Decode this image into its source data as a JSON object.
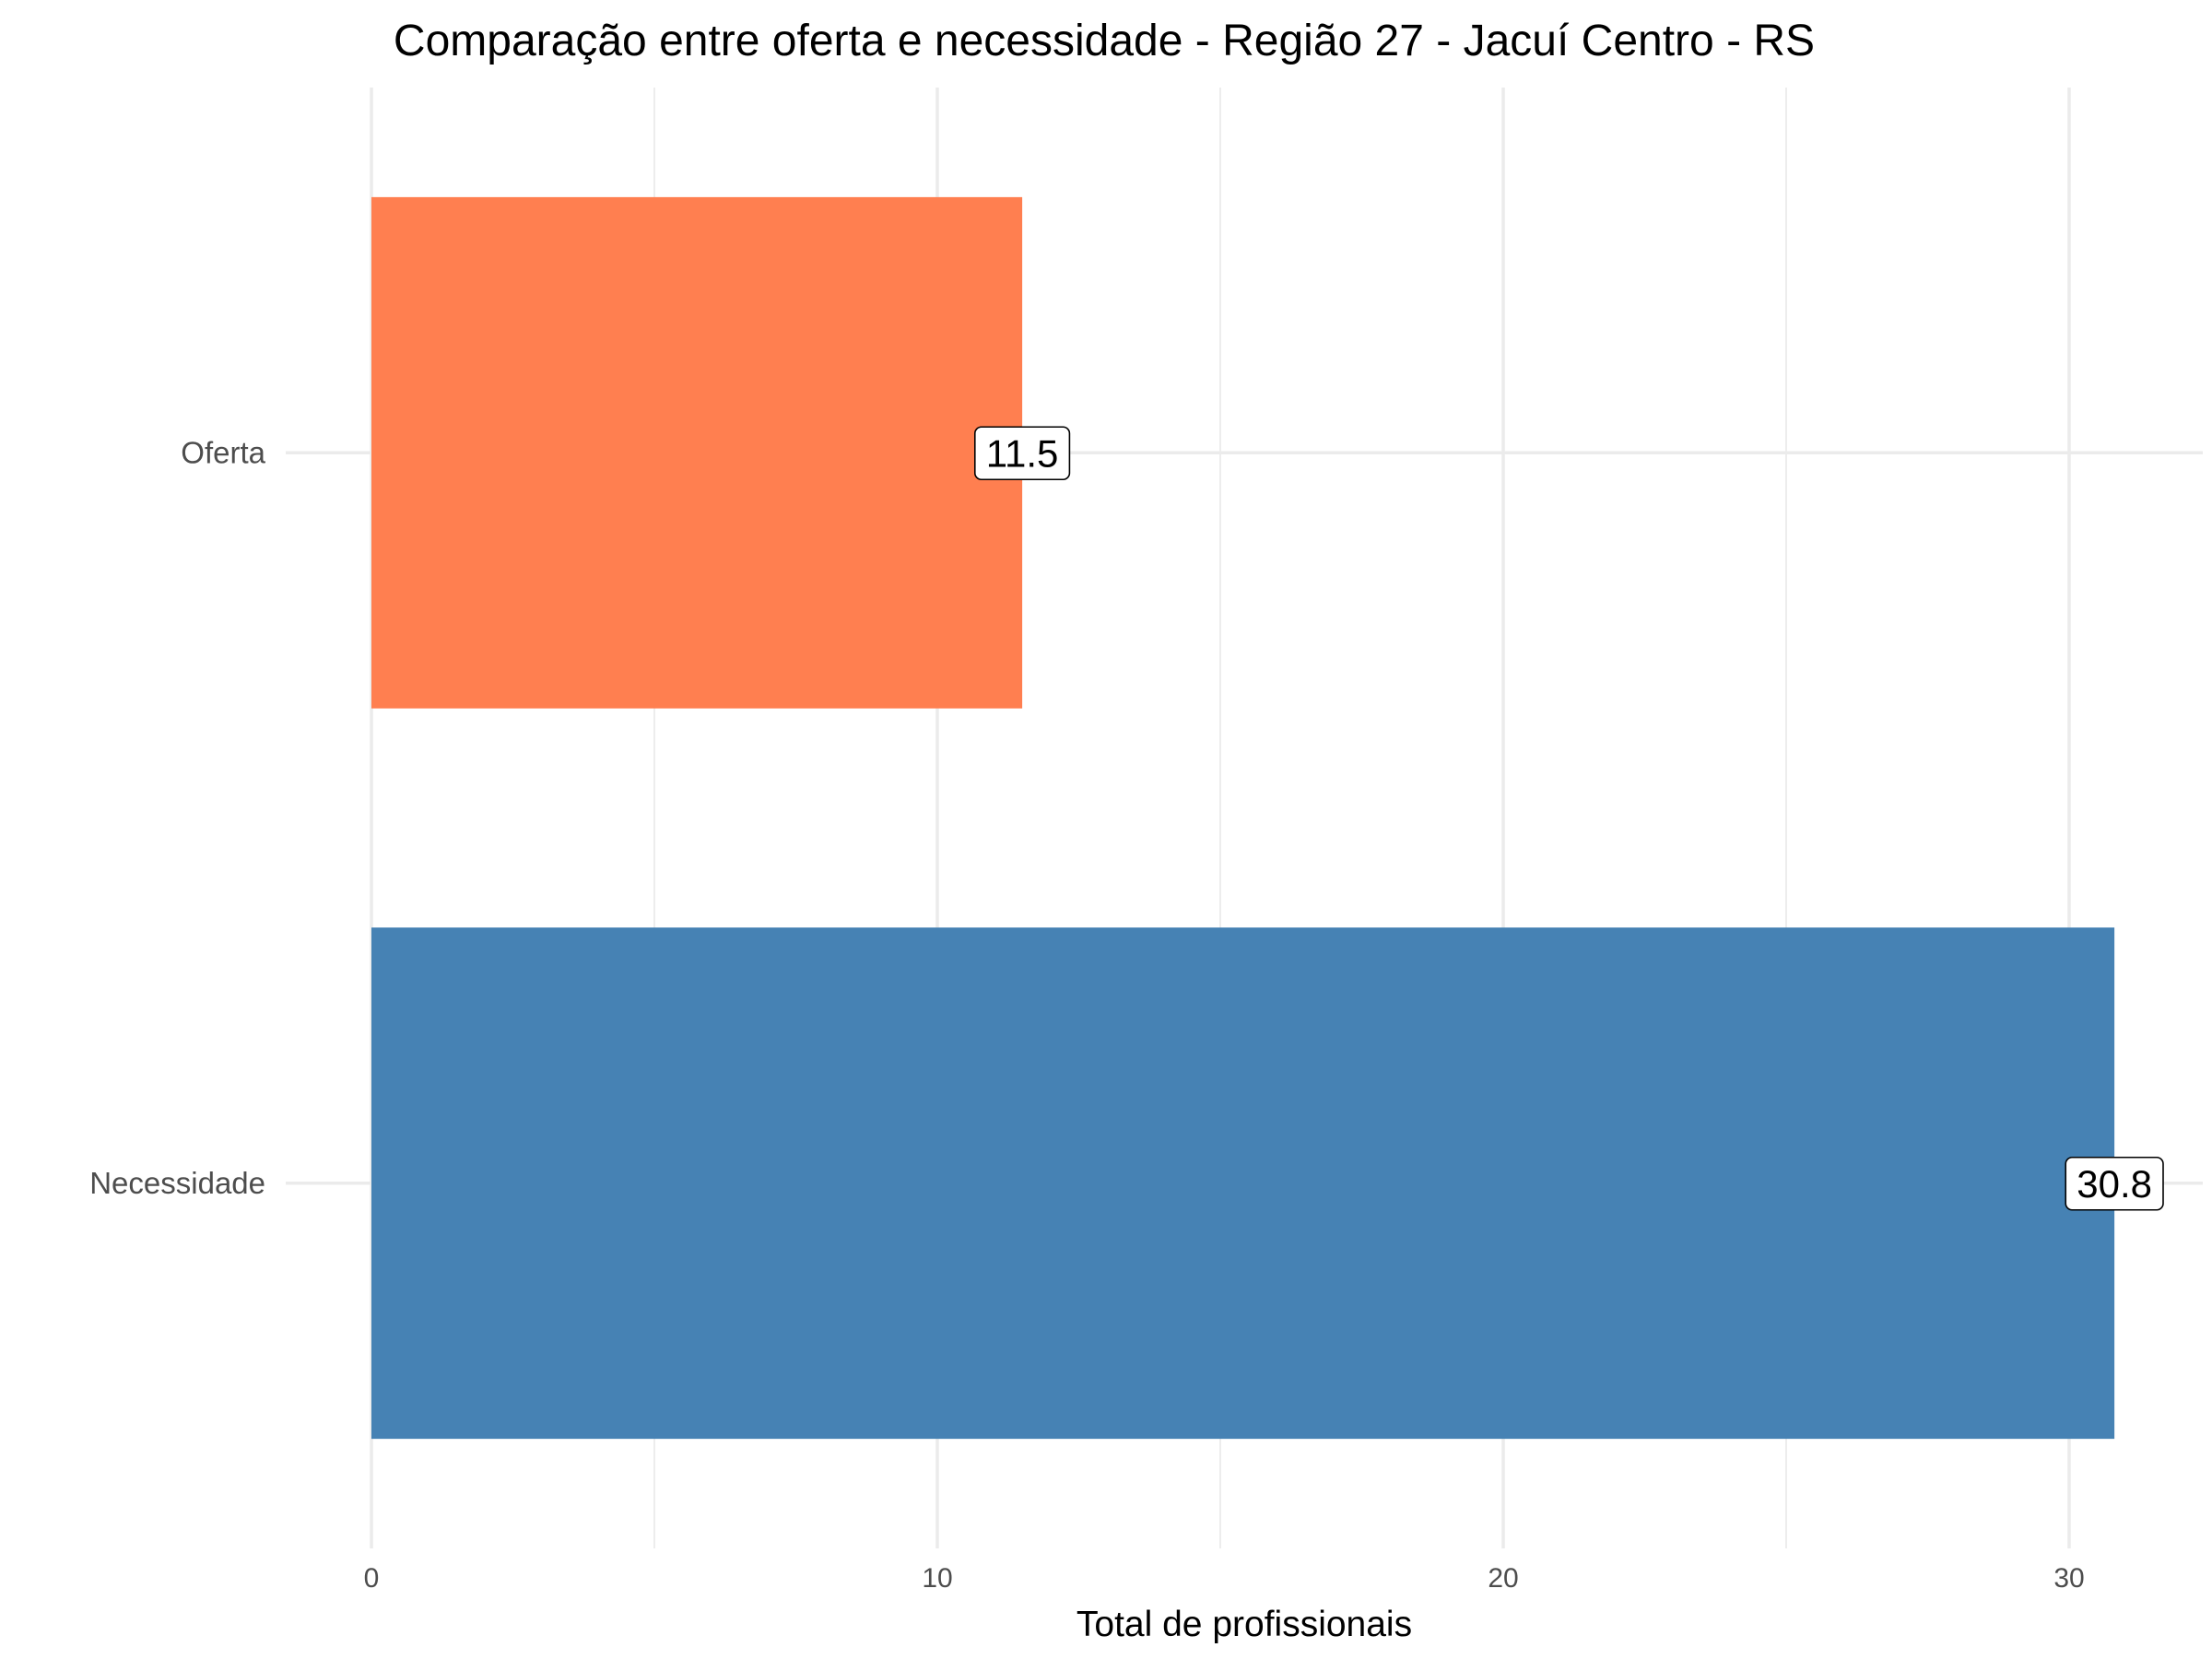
{
  "chart_data": {
    "type": "bar",
    "orientation": "horizontal",
    "title": "Comparação entre oferta e necessidade - Região 27 - Jacuí Centro - RS",
    "xlabel": "Total de profissionais",
    "ylabel": "",
    "categories": [
      "Oferta",
      "Necessidade"
    ],
    "values": [
      11.5,
      30.8
    ],
    "data_labels": [
      "11.5",
      "30.8"
    ],
    "colors": [
      "#FF7F50",
      "#4682B4"
    ],
    "xlim": [
      0,
      32.3
    ],
    "xticks": [
      0,
      10,
      20,
      30
    ],
    "xtick_labels": [
      "0",
      "10",
      "20",
      "30"
    ],
    "grid": true,
    "legend": "none"
  }
}
